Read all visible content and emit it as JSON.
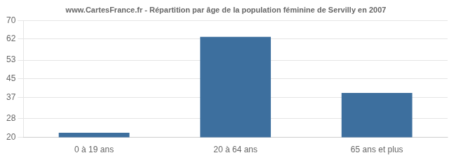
{
  "chart_data": {
    "type": "bar",
    "title": "www.CartesFrance.fr - Répartition par âge de la population féminine de Servilly en 2007",
    "categories": [
      "0 à 19 ans",
      "20 à 64 ans",
      "65 ans et plus"
    ],
    "values": [
      22,
      63,
      39
    ],
    "color": "#3d6f9e",
    "ylim": [
      20,
      70
    ],
    "yticks": [
      20,
      28,
      37,
      45,
      53,
      62,
      70
    ],
    "grid": "y"
  }
}
